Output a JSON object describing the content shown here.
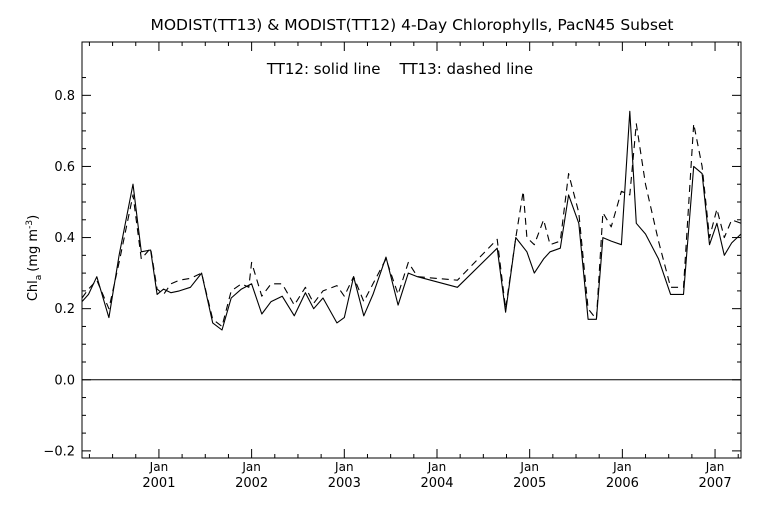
{
  "chart_data": {
    "type": "line",
    "title": "MODIST(TT13) & MODIST(TT12) 4-Day Chlorophylls, PacN45 Subset",
    "annotation": "TT12: solid line    TT13: dashed line",
    "ylabel": "Chl",
    "ylabel_subscript": "a",
    "ylabel_units_prefix": "(mg m",
    "ylabel_units_exp": "-3",
    "ylabel_units_suffix": ")",
    "xlim": [
      2000.17,
      2007.28
    ],
    "ylim": [
      -0.22,
      0.95
    ],
    "y_ticks": [
      -0.2,
      0.0,
      0.2,
      0.4,
      0.6,
      0.8
    ],
    "y_tick_labels": [
      "−0.2",
      "0.0",
      "0.2",
      "0.4",
      "0.6",
      "0.8"
    ],
    "x_ticks": [
      2001.0,
      2002.0,
      2003.0,
      2004.0,
      2005.0,
      2006.0,
      2007.0
    ],
    "x_tick_month_labels": [
      "Jan",
      "Jan",
      "Jan",
      "Jan",
      "Jan",
      "Jan",
      "Jan"
    ],
    "x_tick_year_labels": [
      "2001",
      "2002",
      "2003",
      "2004",
      "2005",
      "2006",
      "2007"
    ],
    "zero_line": 0.0,
    "grid": false,
    "legend": "annotation text at top",
    "series": [
      {
        "style": "solid",
        "x": [
          2000.17,
          2000.24,
          2000.33,
          2000.46,
          2000.57,
          2000.72,
          2000.81,
          2000.91,
          2000.98,
          2001.05,
          2001.13,
          2001.22,
          2001.34,
          2001.46,
          2001.58,
          2001.68,
          2001.78,
          2001.89,
          2002.0,
          2002.11,
          2002.21,
          2002.33,
          2002.46,
          2002.58,
          2002.67,
          2002.77,
          2002.92,
          2003.0,
          2003.1,
          2003.21,
          2003.31,
          2003.45,
          2003.58,
          2003.69,
          2003.79,
          2004.22,
          2004.65,
          2004.74,
          2004.85,
          2004.97,
          2005.05,
          2005.15,
          2005.22,
          2005.33,
          2005.42,
          2005.53,
          2005.63,
          2005.72,
          2005.79,
          2005.88,
          2005.99,
          2006.08,
          2006.15,
          2006.25,
          2006.39,
          2006.52,
          2006.66,
          2006.77,
          2006.86,
          2006.94,
          2007.02,
          2007.1,
          2007.18,
          2007.28
        ],
        "y": [
          0.22,
          0.24,
          0.29,
          0.175,
          0.35,
          0.55,
          0.36,
          0.365,
          0.24,
          0.255,
          0.245,
          0.25,
          0.26,
          0.3,
          0.16,
          0.14,
          0.23,
          0.255,
          0.27,
          0.185,
          0.22,
          0.235,
          0.18,
          0.245,
          0.2,
          0.23,
          0.16,
          0.175,
          0.29,
          0.18,
          0.24,
          0.345,
          0.21,
          0.3,
          0.29,
          0.26,
          0.37,
          0.19,
          0.4,
          0.36,
          0.3,
          0.34,
          0.36,
          0.37,
          0.52,
          0.44,
          0.17,
          0.17,
          0.4,
          0.39,
          0.38,
          0.755,
          0.44,
          0.41,
          0.34,
          0.24,
          0.24,
          0.6,
          0.58,
          0.38,
          0.44,
          0.35,
          0.385,
          0.41
        ]
      },
      {
        "style": "dashed",
        "x": [
          2000.17,
          2000.24,
          2000.33,
          2000.46,
          2000.57,
          2000.72,
          2000.81,
          2000.91,
          2000.98,
          2001.05,
          2001.13,
          2001.22,
          2001.34,
          2001.46,
          2001.58,
          2001.68,
          2001.78,
          2001.89,
          2001.97,
          2002.0,
          2002.11,
          2002.21,
          2002.33,
          2002.46,
          2002.58,
          2002.67,
          2002.77,
          2002.92,
          2003.0,
          2003.1,
          2003.21,
          2003.31,
          2003.45,
          2003.58,
          2003.69,
          2003.79,
          2004.22,
          2004.65,
          2004.74,
          2004.85,
          2004.93,
          2004.97,
          2005.05,
          2005.15,
          2005.22,
          2005.33,
          2005.42,
          2005.53,
          2005.63,
          2005.72,
          2005.79,
          2005.88,
          2005.99,
          2006.08,
          2006.15,
          2006.25,
          2006.39,
          2006.52,
          2006.66,
          2006.77,
          2006.86,
          2006.94,
          2007.02,
          2007.1,
          2007.18,
          2007.28
        ],
        "y": [
          0.23,
          0.255,
          0.28,
          0.2,
          0.33,
          0.52,
          0.34,
          0.37,
          0.255,
          0.24,
          0.27,
          0.28,
          0.285,
          0.3,
          0.17,
          0.15,
          0.25,
          0.27,
          0.26,
          0.33,
          0.235,
          0.27,
          0.27,
          0.21,
          0.26,
          0.215,
          0.25,
          0.265,
          0.235,
          0.29,
          0.22,
          0.27,
          0.34,
          0.24,
          0.33,
          0.29,
          0.28,
          0.395,
          0.2,
          0.4,
          0.53,
          0.4,
          0.38,
          0.45,
          0.38,
          0.39,
          0.58,
          0.47,
          0.2,
          0.17,
          0.47,
          0.43,
          0.53,
          0.52,
          0.72,
          0.55,
          0.39,
          0.26,
          0.26,
          0.72,
          0.6,
          0.4,
          0.48,
          0.4,
          0.45,
          0.44
        ]
      }
    ]
  }
}
